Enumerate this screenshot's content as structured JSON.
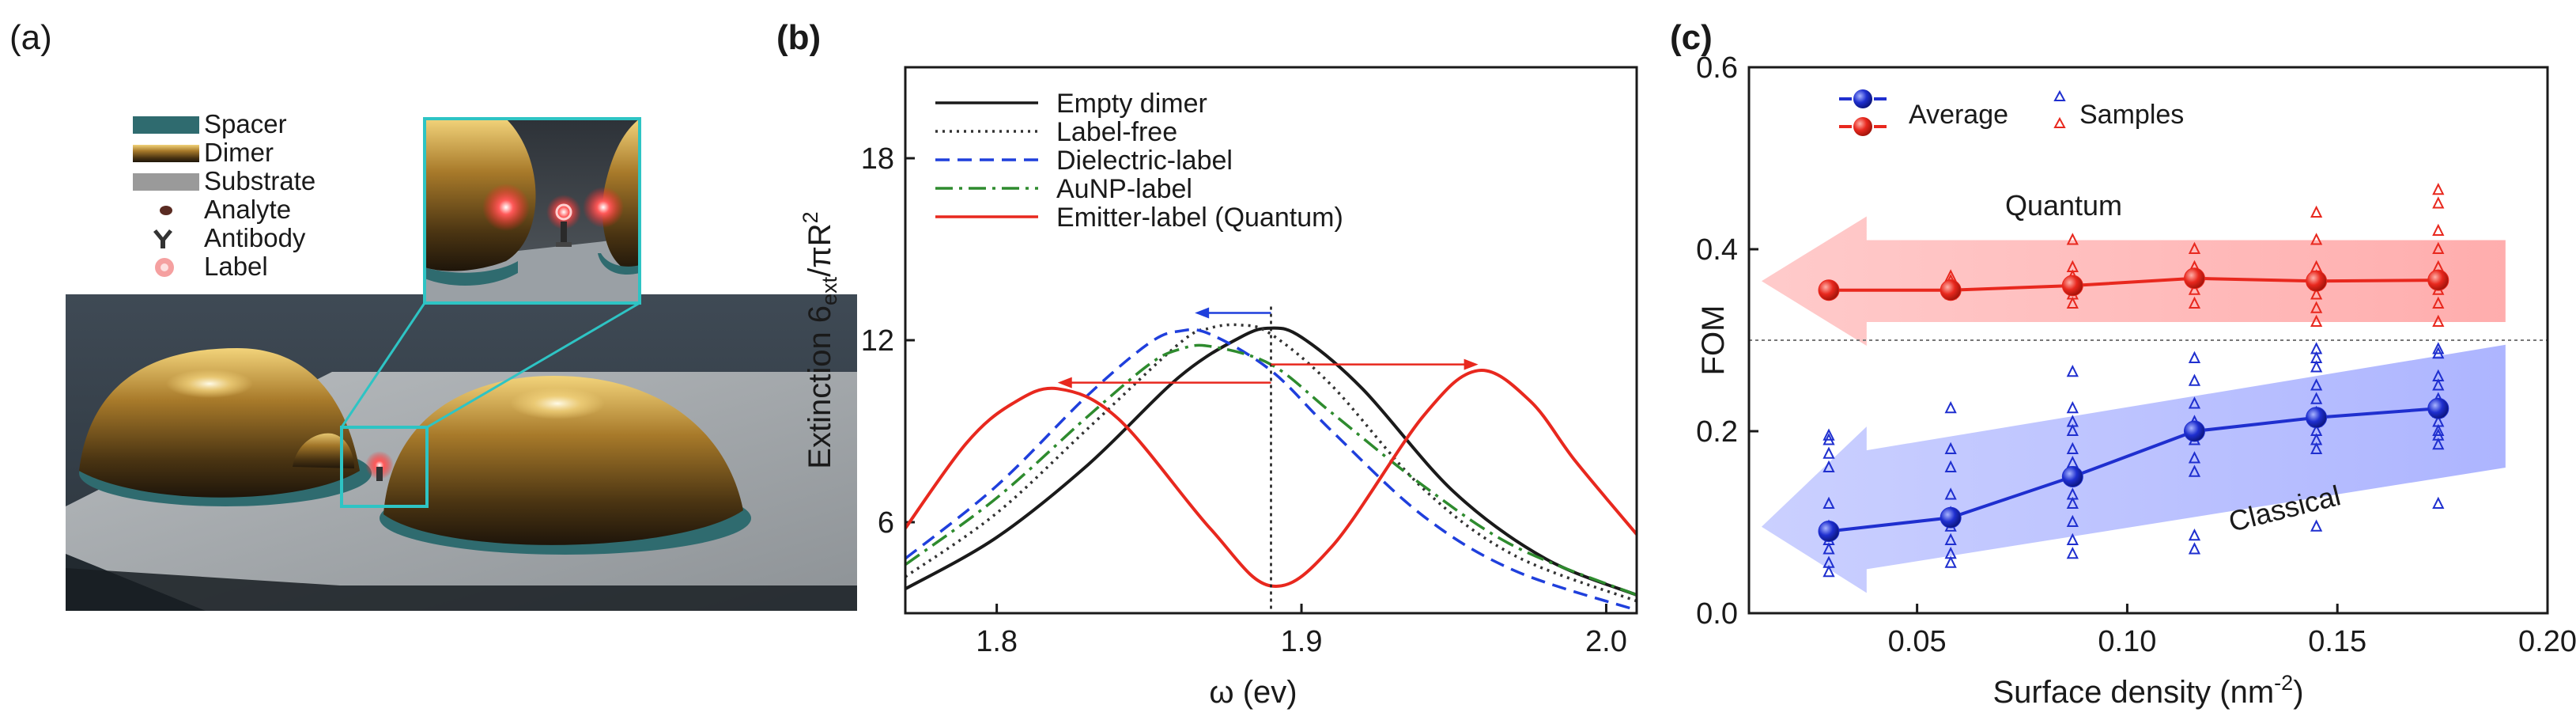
{
  "panel_labels": {
    "a": "(a)",
    "b": "(b)",
    "c": "(c)"
  },
  "panel_a": {
    "legend": [
      {
        "label": "Spacer",
        "color": "#2f6b6f"
      },
      {
        "label": "Dimer",
        "color": "#b48a35"
      },
      {
        "label": "Substrate",
        "color": "#9a9a9a"
      },
      {
        "label": "Analyte",
        "color": "#5a2b22"
      },
      {
        "label": "Antibody",
        "color": "#333333"
      },
      {
        "label": "Label",
        "color": "#f08a8a"
      }
    ]
  },
  "chart_data": [
    {
      "type": "line",
      "panel": "b",
      "xlabel": "ω (ev)",
      "ylabel_parts": {
        "main": "Extinction 6",
        "sub": "ext",
        "tail": "/πR",
        "sup": "2"
      },
      "xlim": [
        1.77,
        2.01
      ],
      "ylim": [
        3.0,
        21.0
      ],
      "xticks": [
        1.8,
        1.9,
        2.0
      ],
      "xtick_labels": [
        "1.8",
        "1.9",
        "2.0"
      ],
      "yticks": [
        6,
        12,
        18
      ],
      "ytick_labels": [
        "6",
        "12",
        "18"
      ],
      "series": [
        {
          "name": "Empty dimer",
          "color": "#1a1a1a",
          "style": "solid",
          "x": [
            1.77,
            1.8,
            1.83,
            1.86,
            1.88,
            1.89,
            1.9,
            1.92,
            1.95,
            1.98,
            2.01
          ],
          "y": [
            3.8,
            5.5,
            7.9,
            10.8,
            12.1,
            12.4,
            12.1,
            10.4,
            7.0,
            4.8,
            3.6
          ]
        },
        {
          "name": "Label-free",
          "color": "#333333",
          "style": "dotted",
          "x": [
            1.77,
            1.8,
            1.83,
            1.86,
            1.87,
            1.88,
            1.89,
            1.91,
            1.94,
            1.97,
            2.01
          ],
          "y": [
            4.2,
            6.3,
            9.1,
            11.9,
            12.4,
            12.5,
            12.2,
            10.5,
            7.1,
            4.9,
            3.4
          ]
        },
        {
          "name": "Dielectric-label",
          "color": "#1f3fdc",
          "style": "dashed",
          "x": [
            1.77,
            1.8,
            1.83,
            1.85,
            1.86,
            1.87,
            1.89,
            1.91,
            1.94,
            1.97,
            2.01
          ],
          "y": [
            4.8,
            7.2,
            10.2,
            11.9,
            12.3,
            12.2,
            11.0,
            9.0,
            6.2,
            4.4,
            3.1
          ]
        },
        {
          "name": "AuNP-label",
          "color": "#2e8b2e",
          "style": "dashdot",
          "x": [
            1.77,
            1.8,
            1.83,
            1.85,
            1.86,
            1.87,
            1.89,
            1.91,
            1.94,
            1.97,
            2.01
          ],
          "y": [
            4.6,
            6.8,
            9.5,
            11.2,
            11.7,
            11.8,
            11.2,
            9.6,
            7.2,
            5.2,
            3.6
          ]
        },
        {
          "name": "Emitter-label (Quantum)",
          "color": "#e8281e",
          "style": "solid",
          "x": [
            1.77,
            1.79,
            1.805,
            1.82,
            1.84,
            1.87,
            1.89,
            1.91,
            1.94,
            1.958,
            1.975,
            1.99,
            2.01
          ],
          "y": [
            5.8,
            8.6,
            9.9,
            10.4,
            9.4,
            5.8,
            3.9,
            5.2,
            9.5,
            11.0,
            10.0,
            8.0,
            5.6
          ]
        }
      ],
      "annotations": {
        "vline_x": 1.89,
        "blue_arrow": {
          "from_x": 1.89,
          "to_x": 1.865,
          "y": 12.9
        },
        "red_arrow_left": {
          "from_x": 1.89,
          "to_x": 1.82,
          "y": 10.6
        },
        "red_arrow_right": {
          "from_x": 1.89,
          "to_x": 1.958,
          "y": 11.2
        }
      }
    },
    {
      "type": "scatter",
      "panel": "c",
      "xlabel_parts": {
        "main": "Surface density (nm",
        "sup": "-2",
        "tail": ")"
      },
      "ylabel": "FOM",
      "xlim": [
        0.01,
        0.2
      ],
      "ylim": [
        0.0,
        0.6
      ],
      "xticks": [
        0.05,
        0.1,
        0.15,
        0.2
      ],
      "xtick_labels": [
        "0.05",
        "0.10",
        "0.15",
        "0.20"
      ],
      "yticks": [
        0.0,
        0.2,
        0.4,
        0.6
      ],
      "ytick_labels": [
        "0.0",
        "0.2",
        "0.4",
        "0.6"
      ],
      "threshold": 0.3,
      "legend": {
        "average": "Average",
        "samples": "Samples"
      },
      "region_labels": {
        "quantum": "Quantum",
        "classical": "Classical"
      },
      "x": [
        0.029,
        0.058,
        0.087,
        0.116,
        0.145,
        0.174
      ],
      "series": [
        {
          "name": "Quantum average",
          "color": "#e8281e",
          "values": [
            0.355,
            0.355,
            0.36,
            0.368,
            0.365,
            0.366
          ],
          "samples": [
            [
              0.355
            ],
            [
              0.35,
              0.355,
              0.36,
              0.365,
              0.37
            ],
            [
              0.34,
              0.35,
              0.36,
              0.37,
              0.38,
              0.41
            ],
            [
              0.34,
              0.355,
              0.37,
              0.38,
              0.4
            ],
            [
              0.32,
              0.335,
              0.35,
              0.36,
              0.37,
              0.38,
              0.41,
              0.44
            ],
            [
              0.32,
              0.34,
              0.355,
              0.37,
              0.38,
              0.4,
              0.42,
              0.45,
              0.465
            ]
          ]
        },
        {
          "name": "Classical average",
          "color": "#1f2fcf",
          "values": [
            0.09,
            0.105,
            0.15,
            0.2,
            0.215,
            0.225
          ],
          "samples": [
            [
              0.045,
              0.055,
              0.07,
              0.08,
              0.095,
              0.12,
              0.16,
              0.175,
              0.19,
              0.195
            ],
            [
              0.055,
              0.065,
              0.08,
              0.095,
              0.11,
              0.13,
              0.16,
              0.18,
              0.225
            ],
            [
              0.065,
              0.08,
              0.1,
              0.12,
              0.13,
              0.15,
              0.165,
              0.18,
              0.2,
              0.21,
              0.225,
              0.265
            ],
            [
              0.07,
              0.085,
              0.155,
              0.17,
              0.19,
              0.21,
              0.23,
              0.255,
              0.28
            ],
            [
              0.095,
              0.18,
              0.19,
              0.2,
              0.21,
              0.22,
              0.235,
              0.25,
              0.27,
              0.28,
              0.29
            ],
            [
              0.12,
              0.185,
              0.195,
              0.2,
              0.21,
              0.22,
              0.235,
              0.25,
              0.26,
              0.285,
              0.29
            ]
          ]
        }
      ]
    }
  ]
}
